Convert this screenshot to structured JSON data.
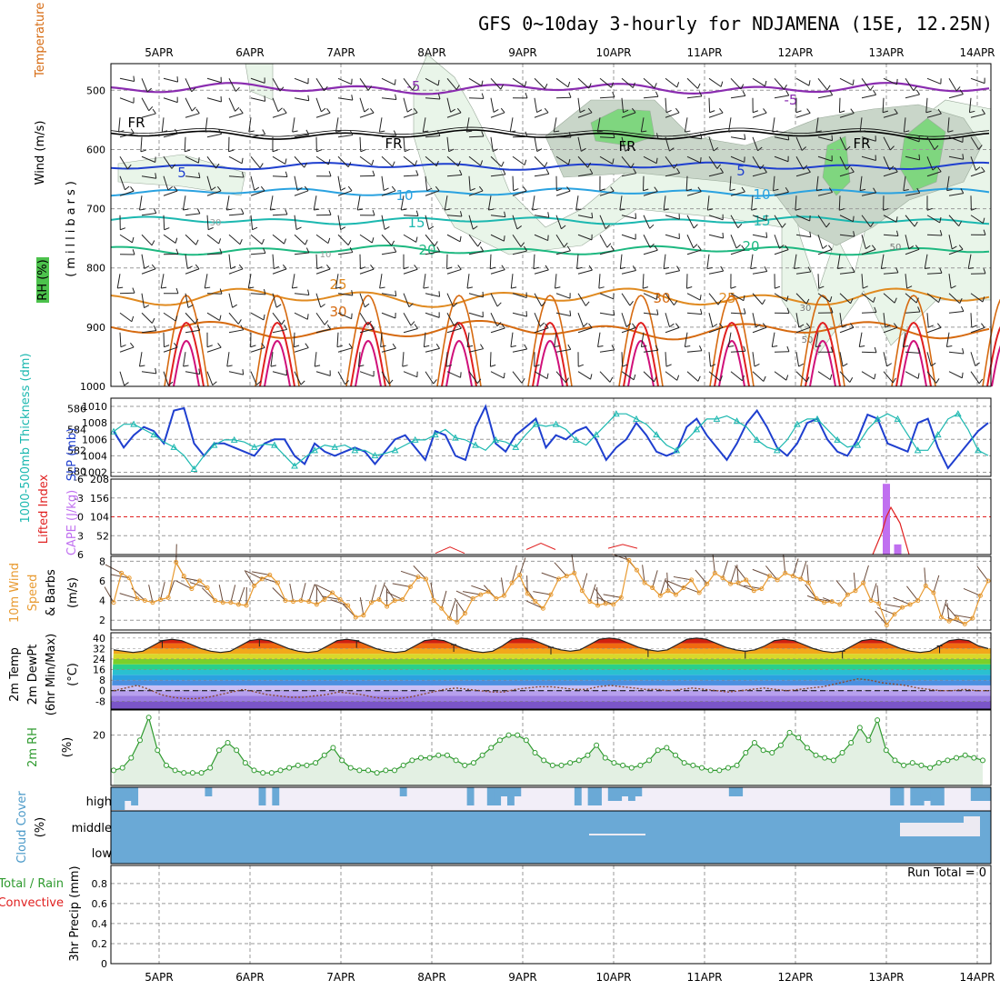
{
  "title": "GFS 0~10day 3-hourly for NDJAMENA (15E, 12.25N)",
  "dates": [
    "5APR",
    "6APR",
    "7APR",
    "8APR",
    "9APR",
    "10APR",
    "11APR",
    "12APR",
    "13APR",
    "14APR"
  ],
  "colors": {
    "grid": "#9a9a9a",
    "purple": "#8a2cb0",
    "blue": "#1f3fcf",
    "lightblue": "#2aa2e0",
    "teal": "#1cb8b0",
    "green_c": "#1db880",
    "orange": "#e08a20",
    "darkorange": "#d66a10",
    "red": "#e02020",
    "magenta": "#d0107a",
    "cape": "#c070f0",
    "wind10": "#e89a30",
    "rh": "#2e9a2e",
    "cloud": "#6aa9d6",
    "cloudbg": "#f2eef8"
  },
  "panels": {
    "upper": {
      "ylabel_wind": "Wind (m/s)",
      "ylabel_temp": "Temperature (°C)",
      "ylabel_rh": "RH (%)",
      "ylabel_unit": "(millibars)",
      "yticks": [
        "500",
        "600",
        "700",
        "800",
        "900",
        "1000"
      ],
      "contour_labels": [
        "-5",
        "-5",
        "FR",
        "FR",
        "FR",
        "FR",
        "5",
        "5",
        "10",
        "10",
        "15",
        "15",
        "20",
        "20",
        "25",
        "25",
        "30",
        "30",
        "30",
        "50",
        "50",
        "30",
        "10"
      ]
    },
    "slp": {
      "ylabel_left": "1000-500mb Thickness (dm)",
      "ylabel_right": "SLP (mb)",
      "yticks_left": [
        "586",
        "584",
        "582",
        "580"
      ],
      "yticks_right": [
        "1010",
        "1008",
        "1006",
        "1004",
        "1002"
      ]
    },
    "cape": {
      "ylabel_left": "Lifted Index",
      "ylabel_right": "CAPE (J/kg)",
      "yticks_left": [
        "-6",
        "-3",
        "0",
        "3",
        "6"
      ],
      "yticks_right": [
        "208",
        "156",
        "104",
        "52"
      ]
    },
    "wind10": {
      "ylabel_a": "10m Wind",
      "ylabel_b": "Speed",
      "ylabel_c": "& Barbs",
      "ylabel_unit": "(m/s)",
      "yticks": [
        "8",
        "6",
        "4",
        "2"
      ]
    },
    "temp2m": {
      "ylabel_a": "2m Temp",
      "ylabel_b": "2m DewPt",
      "ylabel_c": "(6hr Min/Max)",
      "ylabel_unit": "(°C)",
      "yticks": [
        "40",
        "32",
        "24",
        "16",
        "8",
        "0",
        "-8"
      ]
    },
    "rh2m": {
      "ylabel": "2m RH",
      "ylabel_unit": "(%)",
      "yticks": [
        "20"
      ]
    },
    "cloud": {
      "ylabel": "Cloud Cover",
      "ylabel_unit": "(%)",
      "levels": [
        "high",
        "middle",
        "low"
      ]
    },
    "precip": {
      "ylabel_a": "Total / Rain",
      "ylabel_b": "Convective",
      "ylabel_c": "3hr Precip (mm)",
      "run_total": "Run Total = 0",
      "yticks": [
        "0.8",
        "0.6",
        "0.4",
        "0.2",
        "0"
      ]
    }
  },
  "chart_data": [
    {
      "type": "line",
      "name_key": "slp",
      "series": [
        {
          "name": "SLP (mb)",
          "values": [
            1007,
            1005,
            1006.5,
            1007.5,
            1007,
            1005.5,
            1009.5,
            1009.8,
            1005.5,
            1004,
            1005.5,
            1005.5,
            1005,
            1004.5,
            1004,
            1005.5,
            1006,
            1006,
            1004,
            1003,
            1005.5,
            1004.5,
            1004,
            1004.5,
            1005,
            1004.5,
            1003,
            1004.5,
            1006,
            1006.5,
            1005,
            1003.5,
            1007,
            1006.5,
            1004,
            1003.5,
            1007.5,
            1010,
            1005.5,
            1004.5,
            1006.5,
            1007.5,
            1008.5,
            1005,
            1006.5,
            1006,
            1007,
            1007.5,
            1006,
            1003.5,
            1005,
            1006,
            1008,
            1006.5,
            1004.5,
            1004,
            1004.5,
            1007.5,
            1008.5,
            1006.5,
            1005,
            1003.5,
            1005.5,
            1008,
            1009.5,
            1007.5,
            1005,
            1004,
            1005.5,
            1008,
            1008.5,
            1006,
            1004.5,
            1004,
            1006,
            1009,
            1008.5,
            1005.5,
            1005,
            1004.5,
            1008,
            1008.5,
            1005,
            1002.5,
            1004,
            1005.5,
            1007,
            1008
          ]
        },
        {
          "name": "1000-500mb Thickness (dm)",
          "values": [
            583.8,
            584.5,
            584.5,
            584,
            583.5,
            582.8,
            582.3,
            581.5,
            580.2,
            581.5,
            582.5,
            583,
            583,
            582.8,
            582.3,
            582.6,
            582.5,
            581.5,
            580.5,
            581.3,
            582,
            582.5,
            582.3,
            582.5,
            582,
            582,
            581.5,
            581.7,
            582,
            582.5,
            583,
            583,
            583.5,
            584,
            583.2,
            583,
            582.5,
            582,
            583,
            582.8,
            582.3,
            583.5,
            584.5,
            584.3,
            584.5,
            584,
            583,
            582.5,
            583.5,
            584.5,
            585.5,
            585.5,
            585,
            584.5,
            583.5,
            582.5,
            582,
            583,
            584,
            585,
            585,
            585.3,
            584.8,
            584.2,
            583,
            582.3,
            582,
            583,
            584.5,
            585,
            585,
            584,
            583,
            582.3,
            582.5,
            584,
            585,
            585.5,
            585,
            583.5,
            582,
            582,
            583.5,
            585,
            585.5,
            584,
            582,
            581.5
          ]
        }
      ]
    },
    {
      "type": "bar",
      "name_key": "cape",
      "series": [
        {
          "name": "CAPE (J/kg)",
          "bars": [
            {
              "t": 8.5,
              "value": 195
            },
            {
              "t": 8.625,
              "value": 28
            }
          ]
        },
        {
          "name": "Lifted Index",
          "points": [
            {
              "t": 8.35,
              "value": 6
            },
            {
              "t": 8.45,
              "value": 2.5
            },
            {
              "t": 8.5,
              "value": 0
            },
            {
              "t": 8.55,
              "value": -1.5
            },
            {
              "t": 8.65,
              "value": 1
            },
            {
              "t": 8.75,
              "value": 6
            }
          ]
        }
      ]
    },
    {
      "type": "line",
      "name_key": "wind10",
      "series": [
        {
          "name": "10m Wind Speed (m/s)",
          "values": [
            3.8,
            6.8,
            6.3,
            4.2,
            4,
            3.8,
            4.1,
            4.3,
            7.9,
            6.5,
            5.2,
            6,
            5.3,
            4,
            3.8,
            3.8,
            3.6,
            3.5,
            5.5,
            6.2,
            6.6,
            5.8,
            4,
            3.9,
            4,
            3.9,
            3.6,
            4.1,
            4.8,
            4.1,
            3.5,
            2.3,
            2.5,
            3.8,
            4.1,
            3.4,
            4,
            4.1,
            5.4,
            6.4,
            6.2,
            4,
            3.2,
            2.2,
            1.8,
            2.7,
            4.2,
            4.6,
            4.9,
            4.2,
            4.5,
            5.8,
            6.6,
            4.7,
            3.9,
            3.2,
            4.6,
            6.2,
            6.5,
            6.8,
            5,
            3.9,
            3.5,
            3.7,
            3.6,
            4.3,
            8.1,
            7.1,
            5.8,
            5.3,
            4.5,
            5,
            4.6,
            5.3,
            6.1,
            4.8,
            5.7,
            6.8,
            6.3,
            5.7,
            5.8,
            6.1,
            5,
            5.2,
            6.5,
            6.1,
            6.8,
            6.5,
            6.2,
            5.8,
            4.2,
            3.8,
            3.9,
            3.6,
            4.6,
            5,
            5.8,
            4,
            3.7,
            1.5,
            2.6,
            3.3,
            3.6,
            4,
            5.5,
            4.8,
            2.3,
            1.9,
            2.2,
            1.6,
            2.2,
            4.5,
            6
          ]
        }
      ]
    },
    {
      "type": "area",
      "name_key": "temp2m",
      "series": [
        {
          "name": "2m Temp (°C)",
          "values": [
            31,
            30,
            29,
            30,
            34,
            38,
            39,
            38,
            35,
            32,
            30,
            29,
            30,
            34,
            38,
            39,
            38,
            35,
            32,
            30,
            29,
            30,
            34,
            38,
            39,
            38,
            35,
            32,
            30,
            29,
            30,
            34,
            38,
            39,
            38,
            35,
            32,
            30,
            29,
            30,
            34,
            39,
            40,
            39,
            36,
            33,
            31,
            30,
            31,
            35,
            39,
            40,
            39,
            36,
            33,
            31,
            30,
            31,
            35,
            39,
            40,
            39,
            36,
            33,
            31,
            30,
            31,
            34,
            38,
            39,
            38,
            35,
            32,
            30,
            29,
            30,
            34,
            38,
            39,
            38,
            35,
            32,
            30,
            29,
            30,
            34,
            38,
            39,
            38,
            34,
            32
          ]
        },
        {
          "name": "2m DewPt (°C)",
          "values": [
            0,
            2,
            4,
            1,
            -3,
            -5,
            -6,
            -6,
            -5,
            -3,
            -1,
            1,
            -1,
            -3,
            -4,
            -5,
            -5,
            -4,
            -3,
            -1,
            -2,
            -3,
            -5,
            -6,
            -6,
            -5,
            -3,
            -1,
            1,
            2,
            1,
            0,
            -1,
            -1,
            1,
            2,
            3,
            3,
            2,
            1,
            1,
            3,
            4,
            3,
            2,
            1,
            1,
            0,
            1,
            2,
            1,
            0,
            -1,
            0,
            1,
            2,
            1,
            0,
            1,
            2,
            3,
            5,
            7,
            9,
            8,
            6,
            5,
            4,
            2,
            1,
            0,
            0,
            1,
            0,
            0
          ]
        }
      ]
    },
    {
      "type": "area",
      "name_key": "rh2m",
      "series": [
        {
          "name": "2m RH (%)",
          "values": [
            6,
            7,
            11,
            18,
            27,
            14,
            8,
            6,
            5,
            5,
            5,
            7,
            14,
            17,
            14,
            9,
            6,
            5,
            5,
            6,
            7,
            8,
            8,
            9,
            12,
            15,
            10,
            7,
            6,
            6,
            5,
            6,
            6,
            8,
            10,
            11,
            11,
            12,
            12,
            10,
            8,
            9,
            12,
            15,
            18,
            20,
            20,
            18,
            13,
            10,
            8,
            8,
            9,
            10,
            12,
            16,
            11,
            9,
            8,
            7,
            8,
            10,
            14,
            15,
            12,
            9,
            8,
            7,
            6,
            6,
            7,
            8,
            13,
            17,
            14,
            13,
            16,
            21,
            19,
            15,
            12,
            11,
            10,
            13,
            17,
            23,
            18,
            26,
            14,
            10,
            8,
            9,
            8,
            7,
            9,
            10,
            11,
            12,
            11,
            10
          ]
        }
      ]
    },
    {
      "type": "bar",
      "name_key": "cloud",
      "series": [
        {
          "name": "high",
          "values": [
            5,
            5,
            3,
            4,
            0,
            0,
            0,
            0,
            0,
            0,
            0,
            0,
            0,
            0,
            2,
            0,
            0,
            0,
            0,
            0,
            0,
            0,
            4,
            0,
            4,
            0,
            0,
            0,
            0,
            0,
            0,
            0,
            0,
            0,
            0,
            0,
            0,
            0,
            0,
            0,
            0,
            0,
            0,
            2,
            0,
            0,
            0,
            0,
            0,
            0,
            0,
            0,
            0,
            4,
            0,
            0,
            4,
            4,
            2,
            4,
            2,
            0,
            0,
            0,
            0,
            0,
            0,
            0,
            0,
            4,
            0,
            4,
            4,
            0,
            3,
            3,
            2,
            3,
            2,
            0,
            0,
            0,
            0,
            0,
            0,
            0,
            0,
            0,
            0,
            0,
            0,
            0,
            2,
            2,
            0,
            0,
            0,
            0,
            0,
            0,
            0,
            0,
            0,
            0,
            0,
            0,
            0,
            0,
            0,
            0,
            0,
            0,
            0,
            0,
            0,
            0,
            4,
            4,
            0,
            4,
            4,
            3,
            4,
            4,
            0,
            0,
            0,
            0,
            3,
            3,
            3
          ]
        },
        {
          "name": "middle",
          "values": []
        },
        {
          "name": "low",
          "values": []
        }
      ]
    },
    {
      "type": "bar",
      "name_key": "precip",
      "series": [
        {
          "name": "3hr Precip (mm)",
          "values": []
        }
      ]
    }
  ]
}
